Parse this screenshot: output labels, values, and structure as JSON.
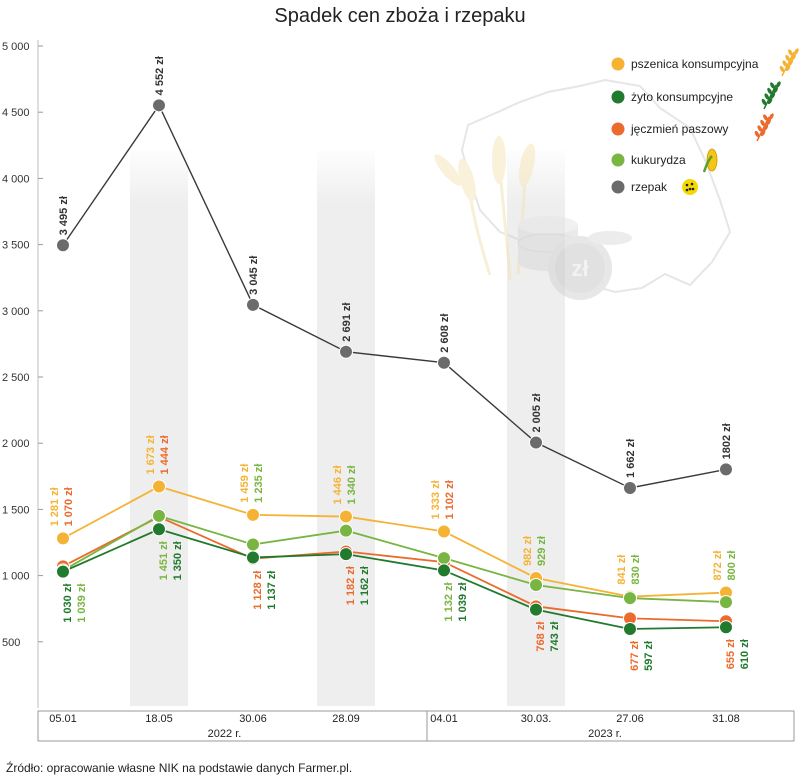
{
  "chart_data": {
    "type": "line",
    "title": "Spadek cen zboża i rzepaku",
    "source": "Źródło: opracowanie własne NIK na podstawie danych Farmer.pl.",
    "categories": [
      "05.01",
      "18.05",
      "30.06",
      "28.09",
      "04.01",
      "30.03.",
      "27.06",
      "31.08"
    ],
    "groups": [
      {
        "label": "2022 r.",
        "span": [
          0,
          3
        ]
      },
      {
        "label": "2023 r.",
        "span": [
          4,
          7
        ]
      }
    ],
    "yticks": [
      "500",
      "1 000",
      "1 500",
      "2 000",
      "2 500",
      "3 000",
      "3 500",
      "4 000",
      "4 500",
      "5 000"
    ],
    "ylim": [
      0,
      5000
    ],
    "grid": false,
    "legend_position": "top-right",
    "series": [
      {
        "name": "rzepak",
        "color": "#6b6b6b",
        "values": [
          3495,
          4552,
          3045,
          2691,
          2608,
          2005,
          1662,
          1802
        ],
        "labels": [
          "3 495 zł",
          "4 552 zł",
          "3 045 zł",
          "2 691 zł",
          "2 608 zł",
          "2 005 zł",
          "1 662 zł",
          "1802 zł"
        ]
      },
      {
        "name": "pszenica konsumpcyjna",
        "color": "#f5b335",
        "values": [
          1281,
          1673,
          1459,
          1446,
          1333,
          982,
          841,
          872
        ],
        "labels": [
          "1 281 zł",
          "1 673 zł",
          "1 459 zł",
          "1 446 zł",
          "1 333 zł",
          "982 zł",
          "841 zł",
          "872 zł"
        ]
      },
      {
        "name": "jęczmień paszowy",
        "color": "#ec6a2c",
        "values": [
          1070,
          1444,
          1128,
          1182,
          1102,
          768,
          677,
          655
        ],
        "labels": [
          "1 070 zł",
          "1 444 zł",
          "1 128 zł",
          "1 182 zł",
          "1 102 zł",
          "768 zł",
          "677 zł",
          "655 zł"
        ]
      },
      {
        "name": "kukurydza",
        "color": "#78b541",
        "values": [
          1039,
          1451,
          1235,
          1340,
          1132,
          929,
          830,
          800
        ],
        "labels": [
          "1 039 zł",
          "1 451 zł",
          "1 235 zł",
          "1 340 zł",
          "1 132 zł",
          "929 zł",
          "830 zł",
          "800 zł"
        ]
      },
      {
        "name": "żyto konsumpcyjne",
        "color": "#217a2d",
        "values": [
          1030,
          1350,
          1137,
          1162,
          1039,
          743,
          597,
          610
        ],
        "labels": [
          "1 030 zł",
          "1 350 zł",
          "1 137 zł",
          "1 162 zł",
          "1 039 zł",
          "743 zł",
          "597 zł",
          "610 zł"
        ]
      }
    ],
    "legend": [
      {
        "name": "pszenica konsumpcyjna",
        "color": "#f5b335",
        "icon": "wheat-icon"
      },
      {
        "name": "żyto konsumpcyjne",
        "color": "#217a2d",
        "icon": "rye-icon"
      },
      {
        "name": "jęczmień paszowy",
        "color": "#ec6a2c",
        "icon": "barley-icon"
      },
      {
        "name": "kukurydza",
        "color": "#78b541",
        "icon": "corn-icon"
      },
      {
        "name": "rzepak",
        "color": "#6b6b6b",
        "icon": "rapeseed-icon"
      }
    ],
    "background_decoration": "poland-map-grain-coins"
  }
}
